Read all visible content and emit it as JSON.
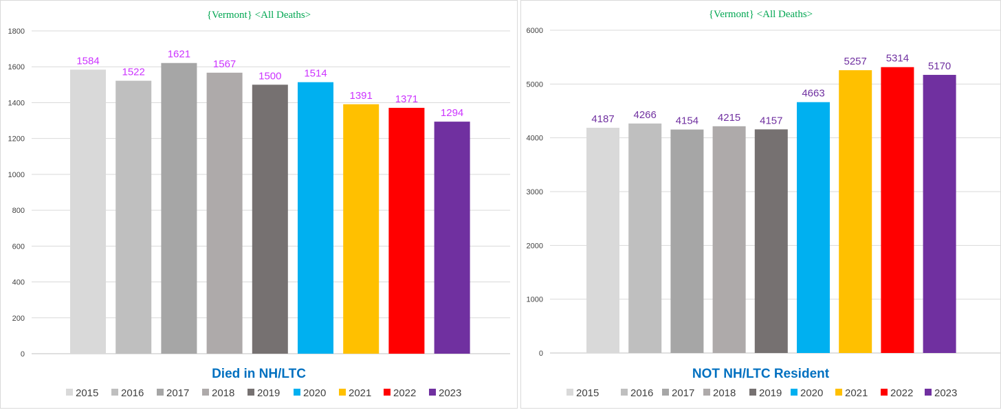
{
  "legend_colors": [
    "#d9d9d9",
    "#bfbfbf",
    "#a6a6a6",
    "#aeaaaa",
    "#767171",
    "#00b0f0",
    "#ffc000",
    "#ff0000",
    "#7030a0"
  ],
  "chart_data": [
    {
      "type": "bar",
      "title": "{Vermont}   <All Deaths>",
      "xlabel": "Died  in NH/LTC",
      "ylabel": "",
      "categories": [
        "2015",
        "2016",
        "2017",
        "2018",
        "2019",
        "2020",
        "2021",
        "2022",
        "2023"
      ],
      "values": [
        1584,
        1522,
        1621,
        1567,
        1500,
        1514,
        1391,
        1371,
        1294
      ],
      "ylim": [
        0,
        1800
      ],
      "yticks": [
        0,
        200,
        400,
        600,
        800,
        1000,
        1200,
        1400,
        1600,
        1800
      ],
      "label_color": "#cc33ff",
      "grid": true,
      "legend_position": "bottom"
    },
    {
      "type": "bar",
      "title": "{Vermont}   <All Deaths>",
      "xlabel": "NOT NH/LTC Resident",
      "ylabel": "",
      "categories": [
        "2015",
        "2016",
        "2017",
        "2018",
        "2019",
        "2020",
        "2021",
        "2022",
        "2023"
      ],
      "values": [
        4187,
        4266,
        4154,
        4215,
        4157,
        4663,
        5257,
        5314,
        5170
      ],
      "ylim": [
        0,
        6000
      ],
      "yticks": [
        0,
        1000,
        2000,
        3000,
        4000,
        5000,
        6000
      ],
      "label_color": "#7030a0",
      "grid": true,
      "legend_position": "bottom"
    }
  ]
}
